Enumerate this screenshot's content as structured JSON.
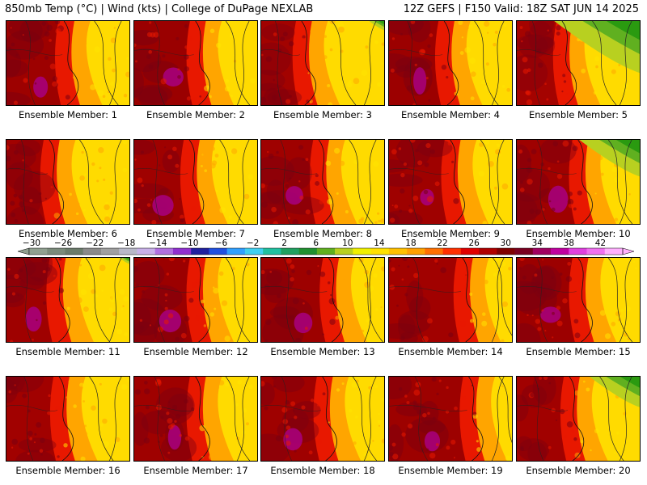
{
  "header": {
    "title_left": "850mb Temp (°C) | Wind (kts) | College of DuPage NEXLAB",
    "title_right": "12Z GEFS | F150 Valid: 18Z SAT JUN 14 2025"
  },
  "panels": [
    {
      "label": "Ensemble Member: 1",
      "hot": 0.9,
      "frontline": 0.52,
      "cool": 0.0
    },
    {
      "label": "Ensemble Member: 2",
      "hot": 1.0,
      "frontline": 0.55,
      "cool": 0.0
    },
    {
      "label": "Ensemble Member: 3",
      "hot": 0.75,
      "frontline": 0.38,
      "cool": 0.15
    },
    {
      "label": "Ensemble Member: 4",
      "hot": 0.95,
      "frontline": 0.5,
      "cool": 0.0
    },
    {
      "label": "Ensemble Member: 5",
      "hot": 0.7,
      "frontline": 0.42,
      "cool": 0.85
    },
    {
      "label": "Ensemble Member: 6",
      "hot": 0.8,
      "frontline": 0.4,
      "cool": 0.0
    },
    {
      "label": "Ensemble Member: 7",
      "hot": 0.85,
      "frontline": 0.5,
      "cool": 0.0
    },
    {
      "label": "Ensemble Member: 8",
      "hot": 0.85,
      "frontline": 0.52,
      "cool": 0.0
    },
    {
      "label": "Ensemble Member: 9",
      "hot": 0.85,
      "frontline": 0.55,
      "cool": 0.0
    },
    {
      "label": "Ensemble Member: 10",
      "hot": 0.85,
      "frontline": 0.55,
      "cool": 0.6
    },
    {
      "label": "Ensemble Member: 11",
      "hot": 0.85,
      "frontline": 0.45,
      "cool": 0.1
    },
    {
      "label": "Ensemble Member: 12",
      "hot": 0.95,
      "frontline": 0.55,
      "cool": 0.0
    },
    {
      "label": "Ensemble Member: 13",
      "hot": 0.9,
      "frontline": 0.6,
      "cool": 0.0
    },
    {
      "label": "Ensemble Member: 14",
      "hot": 0.8,
      "frontline": 0.65,
      "cool": 0.0
    },
    {
      "label": "Ensemble Member: 15",
      "hot": 0.95,
      "frontline": 0.55,
      "cool": 0.0
    },
    {
      "label": "Ensemble Member: 16",
      "hot": 0.8,
      "frontline": 0.48,
      "cool": 0.0
    },
    {
      "label": "Ensemble Member: 17",
      "hot": 0.85,
      "frontline": 0.55,
      "cool": 0.0
    },
    {
      "label": "Ensemble Member: 18",
      "hot": 0.85,
      "frontline": 0.55,
      "cool": 0.0
    },
    {
      "label": "Ensemble Member: 19",
      "hot": 0.9,
      "frontline": 0.7,
      "cool": 0.0
    },
    {
      "label": "Ensemble Member: 20",
      "hot": 0.8,
      "frontline": 0.48,
      "cool": 0.5
    }
  ],
  "colorbar": {
    "ticks": [
      "−30",
      "−26",
      "−22",
      "−18",
      "−14",
      "−10",
      "−6",
      "−2",
      "2",
      "6",
      "10",
      "14",
      "18",
      "22",
      "26",
      "30",
      "34",
      "38",
      "42"
    ],
    "colors": [
      "#90a090",
      "#7b8b7b",
      "#6b7b6b",
      "#8a8a8a",
      "#a0a0a0",
      "#b8b8c8",
      "#c8b0e8",
      "#b070e0",
      "#9030d0",
      "#2020a0",
      "#2050e0",
      "#30a0ff",
      "#40d0f0",
      "#20c0a0",
      "#20a060",
      "#209030",
      "#60b020",
      "#b8d020",
      "#f0f000",
      "#ffe000",
      "#ffc000",
      "#ffa000",
      "#ff7000",
      "#ff3000",
      "#e00000",
      "#b00000",
      "#800000",
      "#7a0020",
      "#a00060",
      "#c000a0",
      "#e040e0",
      "#f070f0",
      "#ffb0ff"
    ]
  },
  "scale_colors": {
    "yellow": "#ffe400",
    "orange": "#ffa500",
    "red": "#e81800",
    "dark_red": "#9a0000",
    "maroon": "#7a0010",
    "magenta": "#a80080",
    "green": "#2a9a10"
  }
}
